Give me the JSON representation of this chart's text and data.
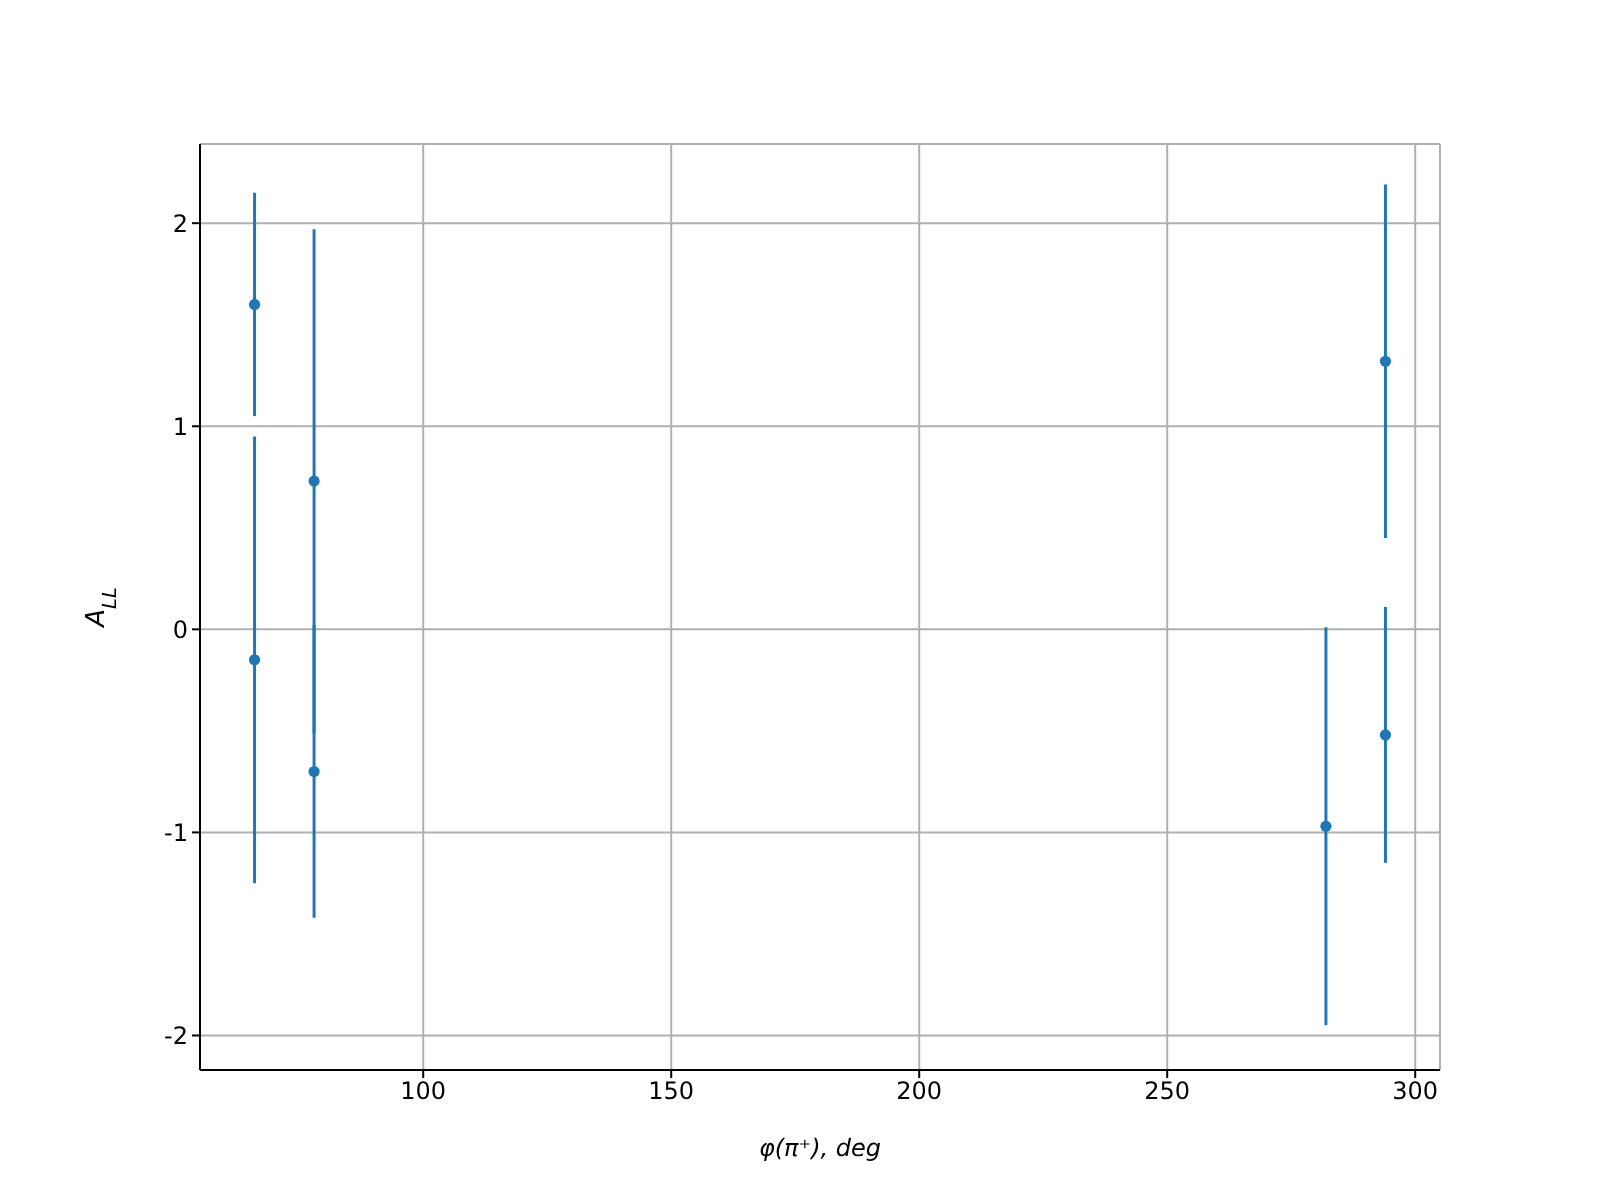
{
  "chart_data": {
    "type": "scatter",
    "xlabel": "φ(π⁺), deg",
    "ylabel": "A$_{LL}$",
    "x": [
      66,
      66,
      78,
      78,
      282,
      294,
      294
    ],
    "series": [
      {
        "color": "#1f77b4",
        "values": [
          1.6,
          -0.15,
          0.73,
          -0.7,
          -0.97,
          1.32,
          -0.52
        ],
        "errors": [
          0.55,
          1.1,
          1.24,
          0.72,
          0.98,
          0.87,
          0.63
        ]
      }
    ],
    "xlim": [
      55,
      305
    ],
    "xticks": [
      100,
      150,
      200,
      250,
      300
    ],
    "ylim": [
      -2.17,
      2.39
    ],
    "yticks": [
      -2,
      -1,
      0,
      1,
      2
    ],
    "grid": true,
    "marker": "circle"
  }
}
